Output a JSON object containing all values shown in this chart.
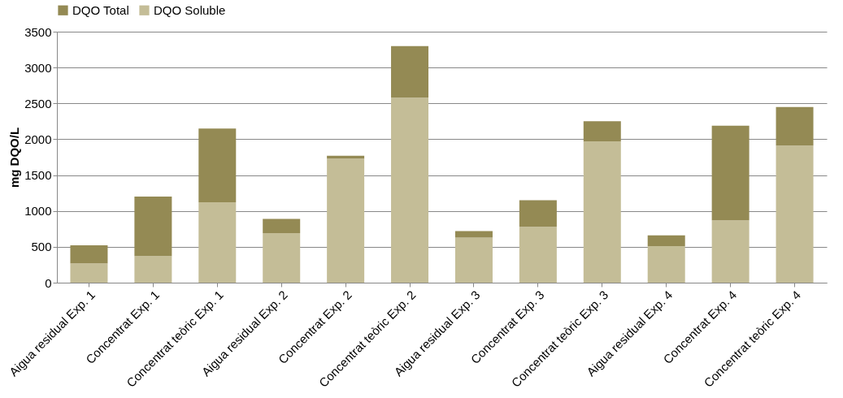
{
  "chart_data": {
    "type": "bar",
    "stacked": true,
    "ylabel": "mg DQO/L",
    "categories": [
      "Aigua residual Exp. 1",
      "Concentrat Exp. 1",
      "Concentrat teòric Exp. 1",
      "Aigua residual Exp. 2",
      "Concentrat Exp. 2",
      "Concentrat teòric Exp. 2",
      "Aigua residual Exp. 3",
      "Concentrat Exp. 3",
      "Concentrat teòric Exp. 3",
      "Aigua residual Exp. 4",
      "Concentrat Exp. 4",
      "Concentrat teòric Exp. 4"
    ],
    "series": [
      {
        "name": "DQO Soluble",
        "color": "#c4bd97",
        "values": [
          270,
          370,
          1120,
          690,
          1730,
          2580,
          630,
          780,
          1970,
          510,
          870,
          1910
        ]
      },
      {
        "name": "DQO Total",
        "color": "#948a54",
        "values": [
          250,
          830,
          1030,
          200,
          40,
          720,
          90,
          370,
          280,
          150,
          1320,
          540
        ]
      }
    ],
    "ylim": [
      0,
      3500
    ],
    "yticks": [
      0,
      500,
      1000,
      1500,
      2000,
      2500,
      3000,
      3500
    ],
    "grid": "y",
    "legend": "top"
  }
}
